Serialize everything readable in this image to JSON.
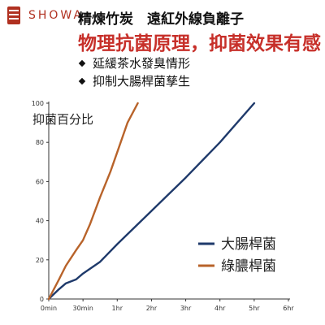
{
  "brand": {
    "name": "SHOWA",
    "accent": "#b03020"
  },
  "header": {
    "title": "精煉竹炭　遠紅外線負離子",
    "heading": "物理抗菌原理，抑菌效果有感"
  },
  "bullets": [
    "延緩茶水發臭情形",
    "抑制大腸桿菌孳生"
  ],
  "chart_data": {
    "type": "line",
    "ylabel": "抑菌百分比",
    "xlabel": "",
    "x_ticks": [
      "0min",
      "30min",
      "1hr",
      "2hr",
      "3hr",
      "4hr",
      "5hr",
      "6hr"
    ],
    "ylim": [
      0,
      100
    ],
    "y_ticks": [
      "0",
      "20",
      "40",
      "60",
      "80",
      "100"
    ],
    "grid": false,
    "legend_position": "bottom-right",
    "series": [
      {
        "name": "大腸桿菌",
        "color": "#1f3a6b",
        "points": [
          [
            0,
            0
          ],
          [
            0.3,
            5
          ],
          [
            0.5,
            8
          ],
          [
            0.8,
            10
          ],
          [
            1,
            13
          ],
          [
            1.5,
            19
          ],
          [
            2,
            28
          ],
          [
            3,
            45
          ],
          [
            4,
            62
          ],
          [
            5,
            80
          ],
          [
            6,
            100
          ]
        ]
      },
      {
        "name": "綠膿桿菌",
        "color": "#b8632a",
        "points": [
          [
            0,
            0
          ],
          [
            0.3,
            10
          ],
          [
            0.5,
            17
          ],
          [
            0.8,
            25
          ],
          [
            1,
            30
          ],
          [
            1.2,
            38
          ],
          [
            1.5,
            52
          ],
          [
            1.8,
            65
          ],
          [
            2,
            75
          ],
          [
            2.3,
            90
          ],
          [
            2.6,
            100
          ]
        ]
      }
    ],
    "axis_color": "#333333"
  }
}
